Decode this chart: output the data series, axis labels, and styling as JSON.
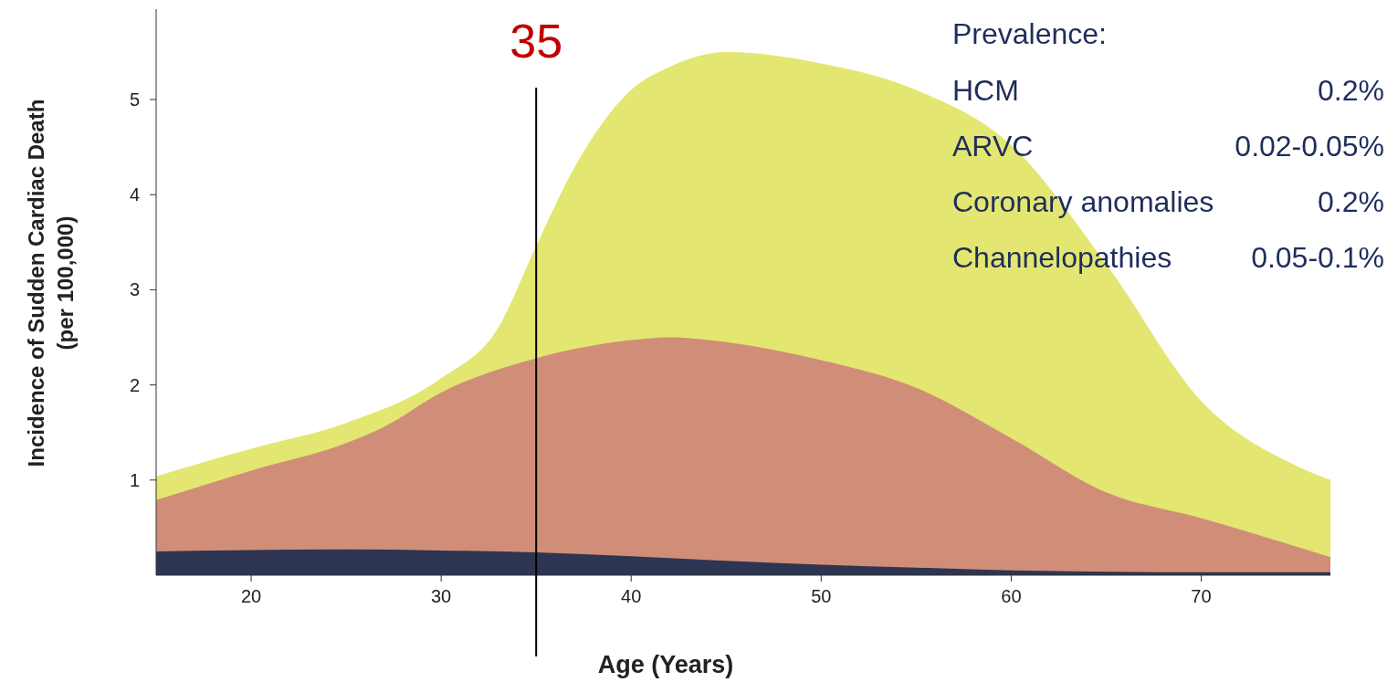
{
  "chart_data": {
    "type": "area",
    "xlabel": "Age (Years)",
    "ylabel": "Incidence of Sudden Cardiac Death\n(per 100,000)",
    "xlim": [
      15,
      76.8
    ],
    "xticks": [
      20,
      30,
      40,
      50,
      60,
      70
    ],
    "ylim": [
      0,
      5.95
    ],
    "yticks": [
      1,
      2,
      3,
      4,
      5
    ],
    "grid": false,
    "series": [
      {
        "color": "#e3e670",
        "x": [
          15,
          20,
          25,
          30,
          33,
          35,
          37,
          40,
          42,
          45,
          50,
          55,
          60,
          65,
          70,
          75,
          76.8
        ],
        "values": [
          1.04,
          1.33,
          1.6,
          2.07,
          2.6,
          3.46,
          4.28,
          5.1,
          5.34,
          5.5,
          5.38,
          5.1,
          4.52,
          3.27,
          1.83,
          1.15,
          1.0
        ]
      },
      {
        "color": "#d08e78",
        "x": [
          15,
          20,
          25,
          27,
          30,
          35,
          40,
          42,
          45,
          50,
          55,
          60,
          65,
          70,
          76.8
        ],
        "values": [
          0.79,
          1.1,
          1.39,
          1.56,
          1.92,
          2.28,
          2.47,
          2.5,
          2.45,
          2.26,
          1.97,
          1.44,
          0.87,
          0.6,
          0.19
        ]
      },
      {
        "color": "#2e3552",
        "x": [
          15,
          25,
          30,
          35,
          40,
          45,
          50,
          55,
          60,
          70,
          76.8
        ],
        "values": [
          0.25,
          0.27,
          0.26,
          0.24,
          0.2,
          0.15,
          0.11,
          0.08,
          0.05,
          0.03,
          0.03
        ]
      }
    ],
    "ref_lines": [
      {
        "axis": "x",
        "value": 35,
        "label": "35",
        "color": "#000000"
      }
    ],
    "annotations": [
      "Prevalence:",
      "HCM",
      "0.2%",
      "ARVC",
      "0.02-0.05%",
      "Coronary anomalies",
      "0.2%",
      "Channelopathies",
      "0.05-0.1%"
    ]
  }
}
